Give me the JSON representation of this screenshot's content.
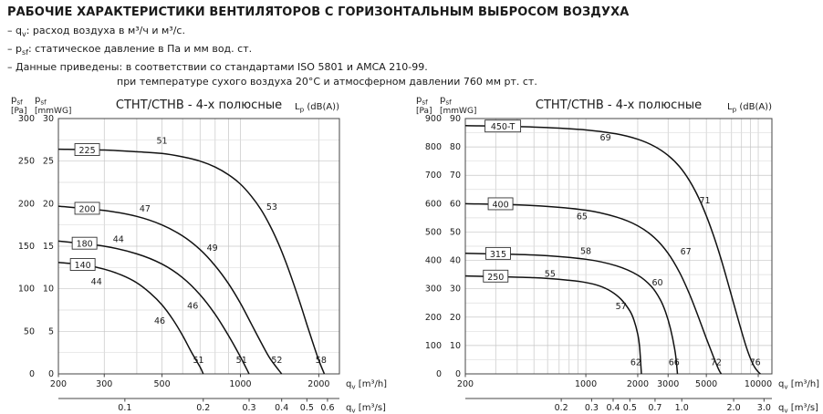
{
  "header": {
    "title": "РАБОЧИЕ ХАРАКТЕРИСТИКИ ВЕНТИЛЯТОРОВ С ГОРИЗОНТАЛЬНЫМ ВЫБРОСОМ ВОЗДУХА",
    "notes": [
      {
        "indent": false,
        "segments": [
          [
            "– q"
          ],
          [
            "v",
            "sub"
          ],
          [
            ": расход воздуха в м³/ч и м³/с."
          ]
        ]
      },
      {
        "indent": false,
        "segments": [
          [
            "– p"
          ],
          [
            "sf",
            "sub"
          ],
          [
            ": статическое давление в Па и мм вод. ст."
          ]
        ]
      },
      {
        "indent": false,
        "segments": [
          [
            "– Данные приведены: в соответствии со стандартами ISO 5801 и AMCA 210-99."
          ]
        ]
      },
      {
        "indent": true,
        "segments": [
          [
            "при температуре сухого воздуха 20°С и атмосферном давлении 760 мм рт. ст."
          ]
        ]
      }
    ]
  },
  "chart_data": [
    {
      "type": "line",
      "title": "СТНТ/СТНВ - 4-х полюсные",
      "lp_label": [
        [
          "L"
        ],
        [
          "p",
          "sub"
        ],
        [
          " (dB(A))"
        ]
      ],
      "legend_position": "none",
      "grid": true,
      "colors": {
        "curve": "#111111",
        "db": "#3b3b9e",
        "grid": "#c6c6c6",
        "axis": "#444444"
      },
      "y_axis": {
        "name_segments": [
          [
            "p"
          ],
          [
            "sf",
            "sub"
          ]
        ],
        "unit": "[Pa]",
        "min": 0,
        "max": 300,
        "major": 50,
        "minor": 25,
        "ticks": [
          0,
          50,
          100,
          150,
          200,
          250,
          300
        ]
      },
      "y_axis2": {
        "name_segments": [
          [
            "p"
          ],
          [
            "sf",
            "sub"
          ]
        ],
        "unit": "[mmWG]",
        "max": 30,
        "ticks": [
          0,
          5,
          10,
          15,
          20,
          25,
          30
        ],
        "pa_per_unit": 10
      },
      "x_axis": {
        "label_segments": [
          [
            "q"
          ],
          [
            "v",
            "sub"
          ],
          [
            " [m³/h]"
          ]
        ],
        "scale": "log",
        "min": 200,
        "max": 2400,
        "tick_labels": [
          200,
          300,
          500,
          1000,
          2000
        ],
        "gridlines": [
          300,
          400,
          500,
          600,
          700,
          800,
          900,
          1000,
          2000
        ]
      },
      "x_axis2": {
        "label_segments": [
          [
            "q"
          ],
          [
            "v",
            "sub"
          ],
          [
            " [m³/s]"
          ]
        ],
        "ticks": [
          "0.1",
          "0.2",
          "0.3",
          "0.4",
          "0.5",
          "0.6"
        ],
        "factor": 3600
      },
      "series": [
        {
          "name": "225",
          "box": {
            "x": 258,
            "y": 263
          },
          "points": [
            [
              200,
              264
            ],
            [
              300,
              263
            ],
            [
              400,
              261
            ],
            [
              500,
              259
            ],
            [
              600,
              255
            ],
            [
              700,
              250
            ],
            [
              800,
              243
            ],
            [
              900,
              234
            ],
            [
              1000,
              223
            ],
            [
              1100,
              209
            ],
            [
              1200,
              193
            ],
            [
              1300,
              174
            ],
            [
              1400,
              153
            ],
            [
              1500,
              130
            ],
            [
              1600,
              106
            ],
            [
              1700,
              82
            ],
            [
              1800,
              58
            ],
            [
              1900,
              36
            ],
            [
              2000,
              16
            ],
            [
              2100,
              0
            ]
          ],
          "db_labels": [
            {
              "text": "51",
              "x": 500,
              "y": 274
            },
            {
              "text": "53",
              "x": 1320,
              "y": 196
            },
            {
              "text": "58",
              "x": 2040,
              "y": 16
            }
          ]
        },
        {
          "name": "200",
          "box": {
            "x": 258,
            "y": 194
          },
          "points": [
            [
              200,
              197
            ],
            [
              300,
              192
            ],
            [
              400,
              185
            ],
            [
              500,
              175
            ],
            [
              600,
              162
            ],
            [
              700,
              146
            ],
            [
              800,
              127
            ],
            [
              900,
              106
            ],
            [
              1000,
              83
            ],
            [
              1100,
              59
            ],
            [
              1200,
              37
            ],
            [
              1300,
              18
            ],
            [
              1440,
              0
            ]
          ],
          "db_labels": [
            {
              "text": "47",
              "x": 430,
              "y": 194
            },
            {
              "text": "49",
              "x": 780,
              "y": 148
            },
            {
              "text": "52",
              "x": 1380,
              "y": 16
            }
          ]
        },
        {
          "name": "180",
          "box": {
            "x": 252,
            "y": 153
          },
          "points": [
            [
              200,
              156
            ],
            [
              300,
              150
            ],
            [
              400,
              141
            ],
            [
              500,
              129
            ],
            [
              600,
              113
            ],
            [
              700,
              93
            ],
            [
              800,
              70
            ],
            [
              900,
              45
            ],
            [
              1000,
              20
            ],
            [
              1080,
              0
            ]
          ],
          "db_labels": [
            {
              "text": "44",
              "x": 340,
              "y": 158
            },
            {
              "text": "46",
              "x": 656,
              "y": 80
            },
            {
              "text": "51",
              "x": 1010,
              "y": 16
            }
          ]
        },
        {
          "name": "140",
          "box": {
            "x": 248,
            "y": 128
          },
          "points": [
            [
              200,
              131
            ],
            [
              250,
              128
            ],
            [
              300,
              123
            ],
            [
              350,
              116
            ],
            [
              400,
              107
            ],
            [
              450,
              95
            ],
            [
              500,
              81
            ],
            [
              550,
              64
            ],
            [
              600,
              45
            ],
            [
              650,
              25
            ],
            [
              700,
              8
            ],
            [
              720,
              0
            ]
          ],
          "db_labels": [
            {
              "text": "44",
              "x": 280,
              "y": 108
            },
            {
              "text": "46",
              "x": 490,
              "y": 62
            },
            {
              "text": "51",
              "x": 690,
              "y": 16
            }
          ]
        }
      ]
    },
    {
      "type": "line",
      "title": "СТНТ/СТНВ - 4-х полюсные",
      "lp_label": [
        [
          "L"
        ],
        [
          "p",
          "sub"
        ],
        [
          " (dB(A))"
        ]
      ],
      "legend_position": "none",
      "grid": true,
      "colors": {
        "curve": "#111111",
        "db": "#3b3b9e",
        "grid": "#c6c6c6",
        "axis": "#444444"
      },
      "y_axis": {
        "name_segments": [
          [
            "p"
          ],
          [
            "sf",
            "sub"
          ]
        ],
        "unit": "[Pa]",
        "min": 0,
        "max": 900,
        "major": 100,
        "minor": 50,
        "ticks": [
          0,
          100,
          200,
          300,
          400,
          500,
          600,
          700,
          800,
          900
        ]
      },
      "y_axis2": {
        "name_segments": [
          [
            "p"
          ],
          [
            "sf",
            "sub"
          ]
        ],
        "unit": "[mmWG]",
        "max": 90,
        "ticks": [
          0,
          10,
          20,
          30,
          40,
          50,
          60,
          70,
          80,
          90
        ],
        "pa_per_unit": 10
      },
      "x_axis": {
        "label_segments": [
          [
            "q"
          ],
          [
            "v",
            "sub"
          ],
          [
            " [m³/h]"
          ]
        ],
        "scale": "log",
        "min": 200,
        "max": 12000,
        "tick_labels": [
          200,
          1000,
          2000,
          3000,
          5000,
          10000
        ],
        "gridlines": [
          300,
          400,
          500,
          600,
          700,
          800,
          900,
          1000,
          2000,
          3000,
          4000,
          5000,
          6000,
          7000,
          8000,
          9000,
          10000
        ]
      },
      "x_axis2": {
        "label_segments": [
          [
            "q"
          ],
          [
            "v",
            "sub"
          ],
          [
            " [m³/s]"
          ]
        ],
        "ticks": [
          "0.2",
          "0.3",
          "0.4",
          "0.5",
          "0.7",
          "1.0",
          "2.0",
          "3.0"
        ],
        "factor": 3600
      },
      "series": [
        {
          "name": "450-T",
          "box": {
            "x": 330,
            "y": 872
          },
          "points": [
            [
              200,
              875
            ],
            [
              500,
              870
            ],
            [
              1000,
              860
            ],
            [
              1500,
              846
            ],
            [
              2000,
              827
            ],
            [
              2500,
              802
            ],
            [
              3000,
              770
            ],
            [
              3500,
              730
            ],
            [
              4000,
              680
            ],
            [
              4500,
              622
            ],
            [
              5000,
              557
            ],
            [
              5500,
              488
            ],
            [
              6000,
              417
            ],
            [
              6500,
              345
            ],
            [
              7000,
              275
            ],
            [
              7500,
              210
            ],
            [
              8000,
              150
            ],
            [
              8500,
              97
            ],
            [
              9000,
              55
            ],
            [
              9500,
              25
            ],
            [
              10000,
              7
            ],
            [
              10300,
              0
            ]
          ],
          "db_labels": [
            {
              "text": "69",
              "x": 1300,
              "y": 832
            },
            {
              "text": "71",
              "x": 4900,
              "y": 610
            },
            {
              "text": "76",
              "x": 9600,
              "y": 40
            }
          ]
        },
        {
          "name": "400",
          "box": {
            "x": 320,
            "y": 598
          },
          "points": [
            [
              200,
              600
            ],
            [
              500,
              593
            ],
            [
              1000,
              577
            ],
            [
              1500,
              553
            ],
            [
              2000,
              522
            ],
            [
              2500,
              480
            ],
            [
              3000,
              425
            ],
            [
              3500,
              357
            ],
            [
              4000,
              280
            ],
            [
              4500,
              200
            ],
            [
              5000,
              125
            ],
            [
              5500,
              60
            ],
            [
              5900,
              15
            ],
            [
              6100,
              0
            ]
          ],
          "db_labels": [
            {
              "text": "65",
              "x": 950,
              "y": 555
            },
            {
              "text": "67",
              "x": 3800,
              "y": 430
            },
            {
              "text": "72",
              "x": 5700,
              "y": 40
            }
          ]
        },
        {
          "name": "315",
          "box": {
            "x": 310,
            "y": 423
          },
          "points": [
            [
              200,
              425
            ],
            [
              500,
              419
            ],
            [
              1000,
              404
            ],
            [
              1500,
              381
            ],
            [
              2000,
              348
            ],
            [
              2400,
              308
            ],
            [
              2700,
              262
            ],
            [
              2900,
              218
            ],
            [
              3100,
              158
            ],
            [
              3300,
              75
            ],
            [
              3400,
              0
            ]
          ],
          "db_labels": [
            {
              "text": "58",
              "x": 1000,
              "y": 432
            },
            {
              "text": "60",
              "x": 2600,
              "y": 322
            },
            {
              "text": "66",
              "x": 3250,
              "y": 40
            }
          ]
        },
        {
          "name": "250",
          "box": {
            "x": 300,
            "y": 343
          },
          "points": [
            [
              200,
              345
            ],
            [
              500,
              339
            ],
            [
              800,
              330
            ],
            [
              1000,
              322
            ],
            [
              1200,
              310
            ],
            [
              1400,
              291
            ],
            [
              1600,
              263
            ],
            [
              1800,
              222
            ],
            [
              1900,
              190
            ],
            [
              2000,
              140
            ],
            [
              2050,
              95
            ],
            [
              2100,
              0
            ]
          ],
          "db_labels": [
            {
              "text": "55",
              "x": 620,
              "y": 352
            },
            {
              "text": "57",
              "x": 1600,
              "y": 238
            },
            {
              "text": "62",
              "x": 1950,
              "y": 40
            }
          ]
        }
      ]
    }
  ]
}
